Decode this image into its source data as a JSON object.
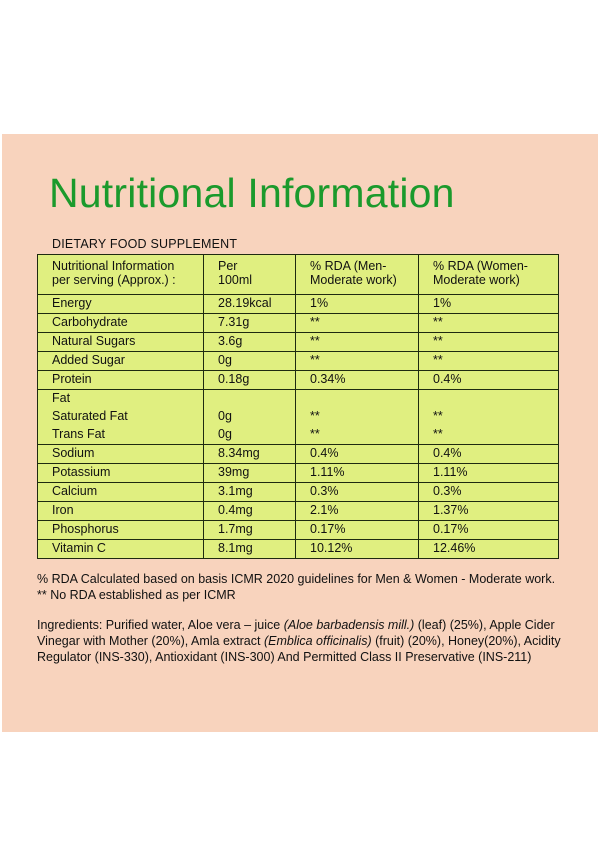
{
  "title": "Nutritional Information",
  "subtitle": "DIETARY FOOD SUPPLEMENT",
  "table": {
    "headers": [
      {
        "l1": "Nutritional Information",
        "l2": "per serving  (Approx.) :"
      },
      {
        "l1": "Per",
        "l2": "100ml"
      },
      {
        "l1": "% RDA (Men-",
        "l2": "Moderate work)"
      },
      {
        "l1": "% RDA (Women-",
        "l2": "Moderate work)"
      }
    ],
    "rows": [
      [
        "Energy",
        "28.19kcal",
        "1%",
        "1%"
      ],
      [
        "Carbohydrate",
        "7.31g",
        "**",
        "**"
      ],
      [
        "Natural Sugars",
        "3.6g",
        "**",
        "**"
      ],
      [
        "Added Sugar",
        "0g",
        "**",
        "**"
      ],
      [
        "Protein",
        "0.18g",
        "0.34%",
        "0.4%"
      ],
      [
        "Fat",
        "",
        "",
        ""
      ],
      [
        "Saturated Fat",
        "0g",
        "**",
        "**"
      ],
      [
        "Trans Fat",
        "0g",
        "**",
        "**"
      ],
      [
        "Sodium",
        "8.34mg",
        "0.4%",
        "0.4%"
      ],
      [
        "Potassium",
        "39mg",
        "1.11%",
        "1.11%"
      ],
      [
        "Calcium",
        "3.1mg",
        "0.3%",
        "0.3%"
      ],
      [
        "Iron",
        "0.4mg",
        "2.1%",
        "1.37%"
      ],
      [
        "Phosphorus",
        "1.7mg",
        "0.17%",
        "0.17%"
      ],
      [
        "Vitamin C",
        "8.1mg",
        "10.12%",
        "12.46%"
      ]
    ]
  },
  "note": "% RDA Calculated based on basis ICMR 2020 guidelines for Men & Women - Moderate work. ** No RDA established as per ICMR",
  "ingredients": {
    "label": "Ingredients:",
    "p1": " Purified water, Aloe vera – juice ",
    "i1": "(Aloe barbadensis mill.)",
    "p2": " (leaf) (25%), Apple Cider Vinegar with Mother (20%), Amla extract ",
    "i2": "(Emblica officinalis)",
    "p3": " (fruit) (20%), Honey(20%), Acidity Regulator (INS-330), Antioxidant (INS-300) And Permitted Class II Preservative (INS-211)"
  },
  "colors": {
    "panel": "#f8d3bd",
    "title": "#1b9a2c",
    "table": "#e0ef80"
  }
}
